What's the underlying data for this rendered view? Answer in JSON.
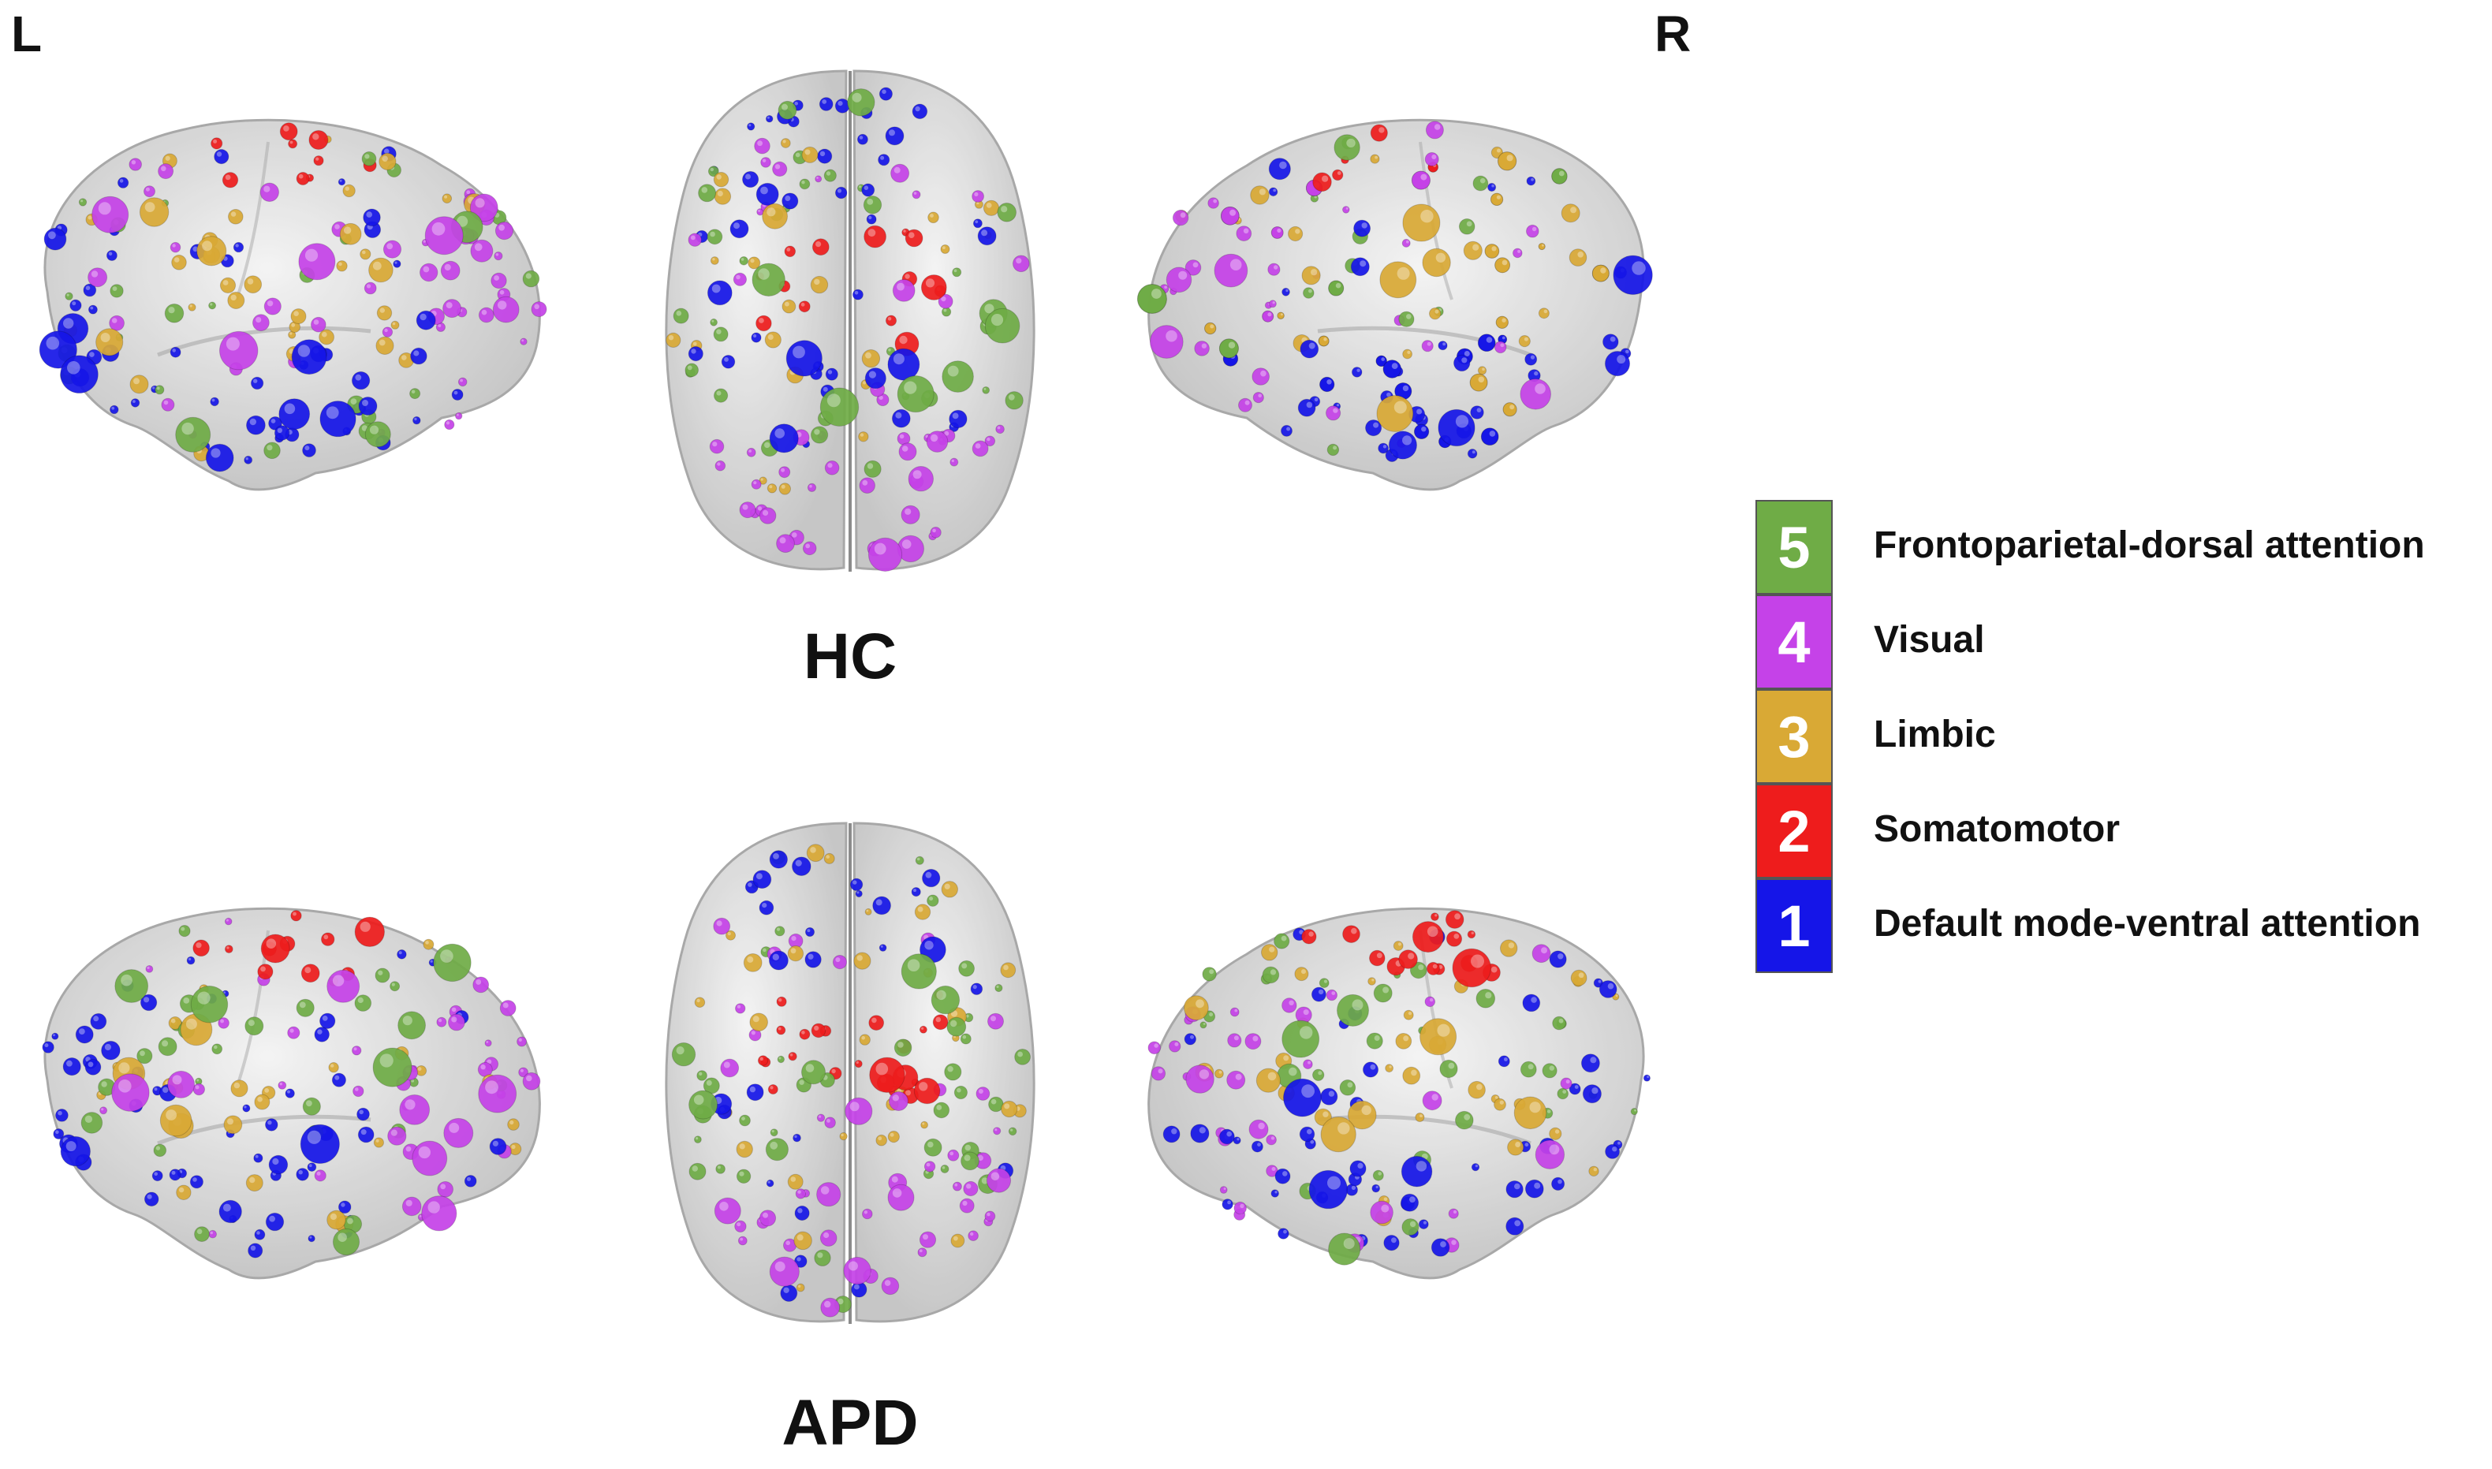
{
  "orientation": {
    "left": "L",
    "right": "R"
  },
  "groups": [
    {
      "label": "HC"
    },
    {
      "label": "APD"
    }
  ],
  "legend": [
    {
      "number": "5",
      "label": "Frontoparietal-dorsal attention",
      "color": "#6fac46"
    },
    {
      "number": "4",
      "label": "Visual",
      "color": "#c542e8"
    },
    {
      "number": "3",
      "label": "Limbic",
      "color": "#d9a935"
    },
    {
      "number": "2",
      "label": "Somatomotor",
      "color": "#ee1c1c"
    },
    {
      "number": "1",
      "label": "Default mode-ventral attention",
      "color": "#1515e8"
    }
  ]
}
